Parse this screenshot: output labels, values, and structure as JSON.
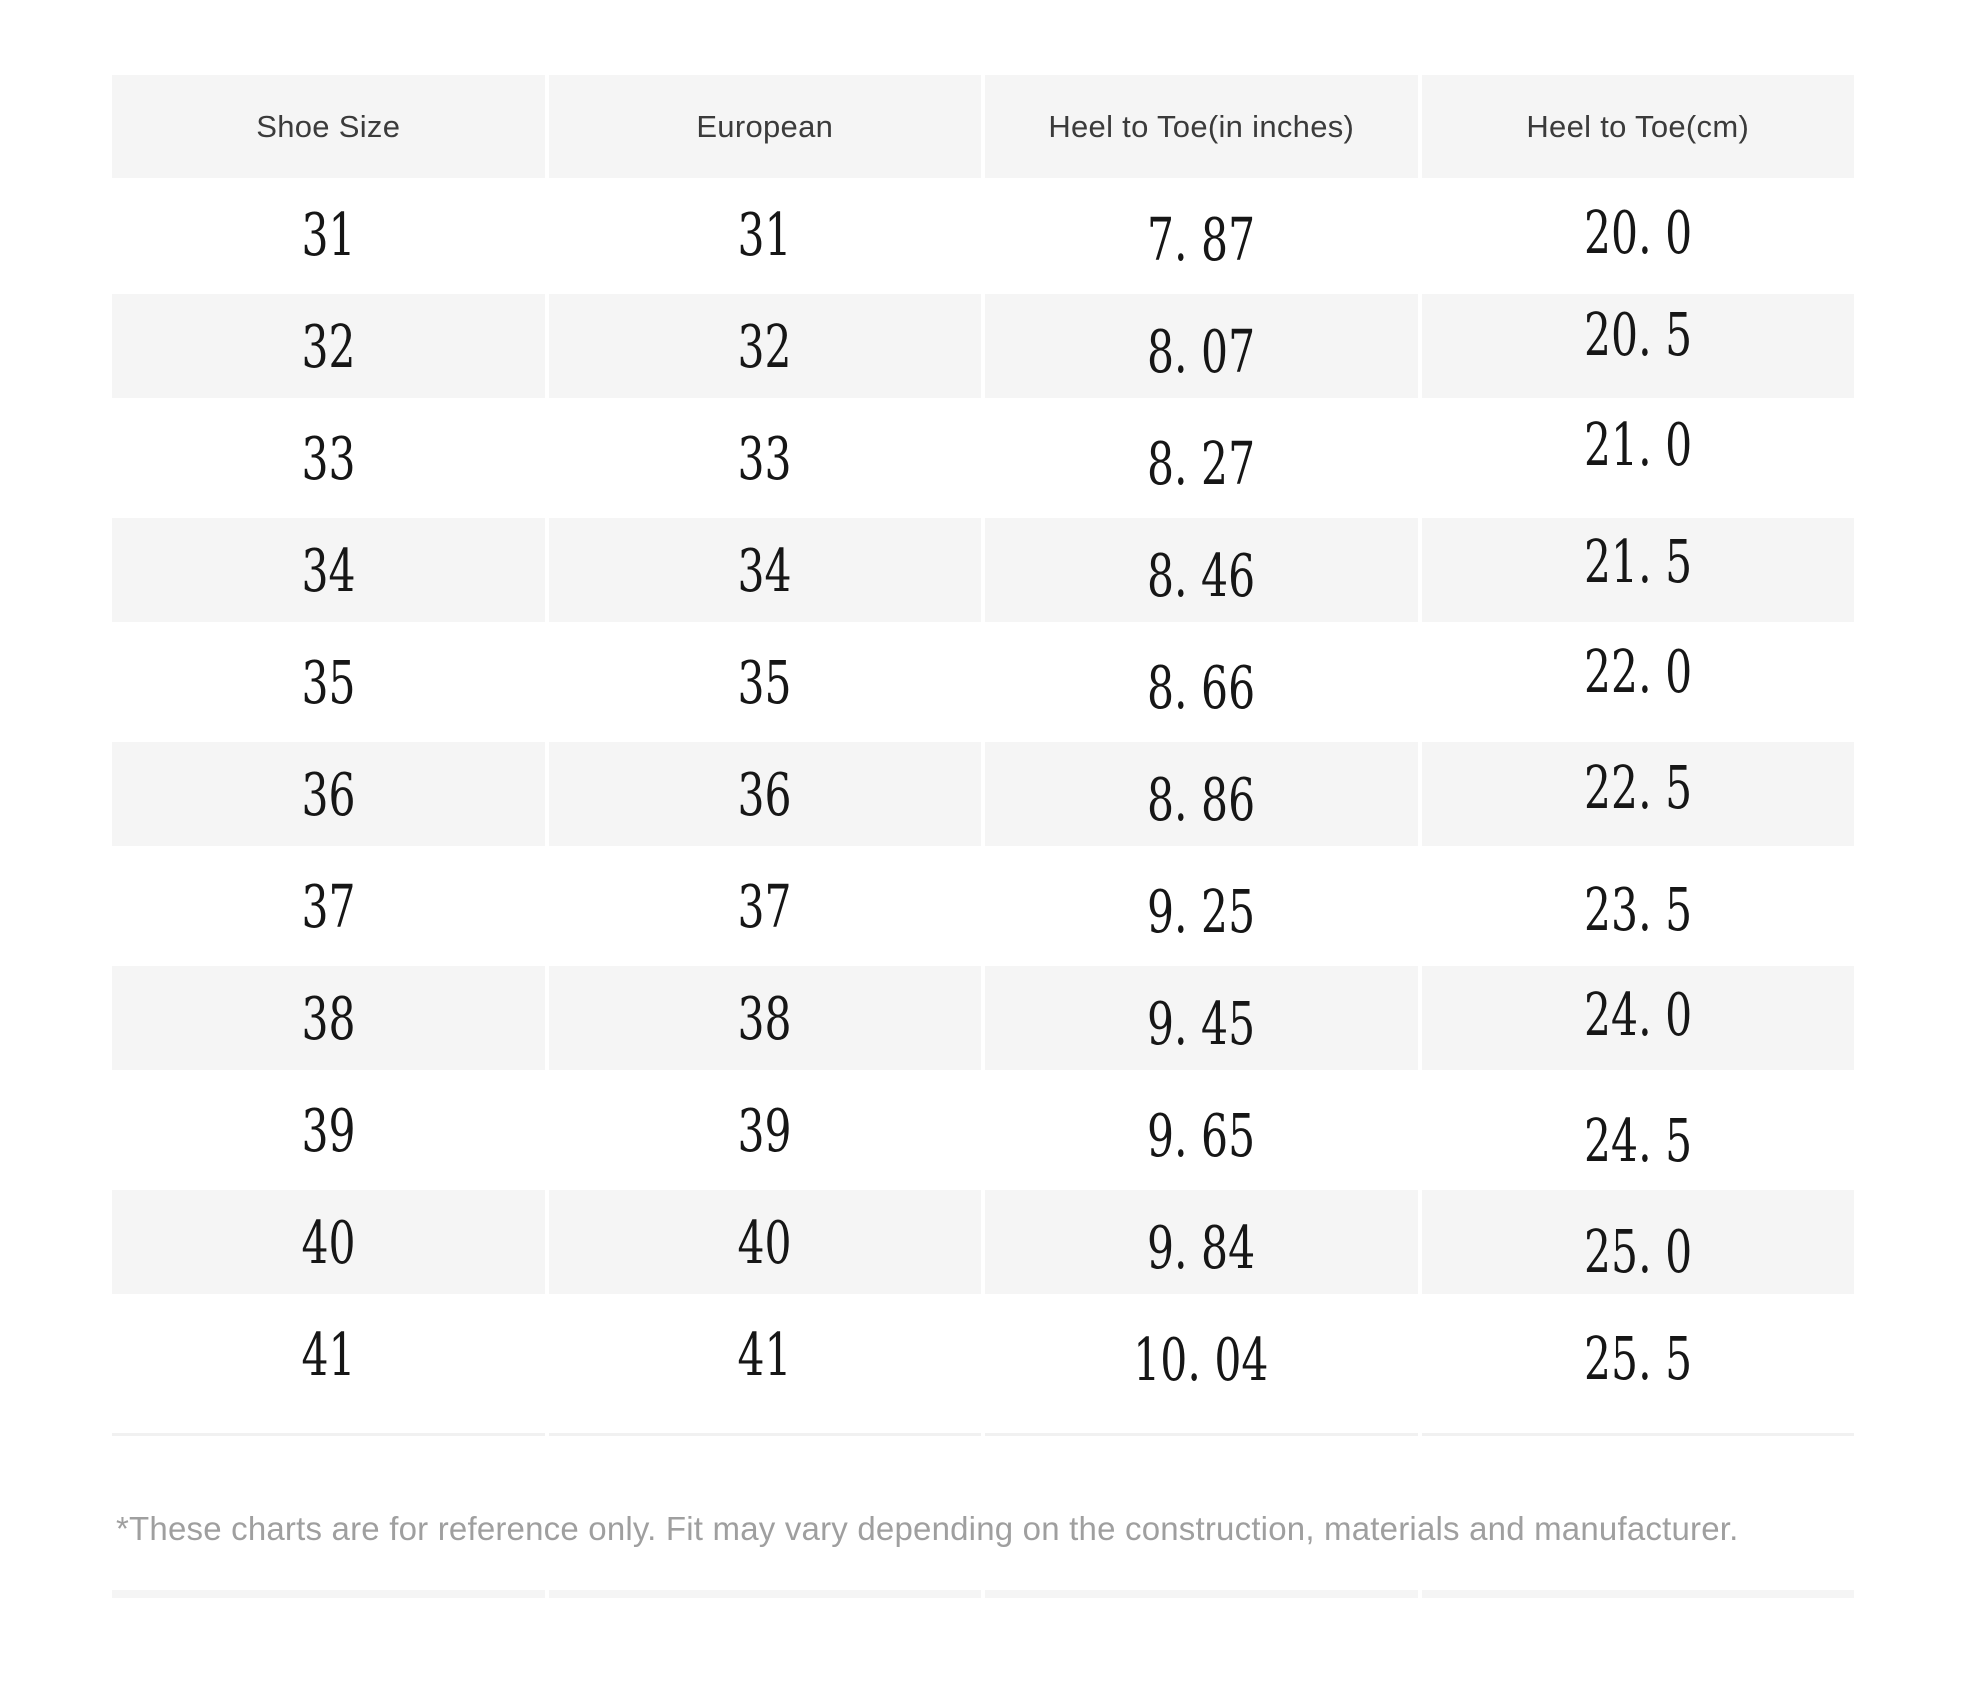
{
  "table": {
    "columns": [
      "Shoe Size",
      "European",
      "Heel to Toe(in inches)",
      "Heel to Toe(cm)"
    ],
    "rows": [
      [
        "31",
        "31",
        "7. 87",
        "20. 0"
      ],
      [
        "32",
        "32",
        "8. 07",
        "20. 5"
      ],
      [
        "33",
        "33",
        "8. 27",
        "21. 0"
      ],
      [
        "34",
        "34",
        "8. 46",
        "21. 5"
      ],
      [
        "35",
        "35",
        "8. 66",
        "22. 0"
      ],
      [
        "36",
        "36",
        "8. 86",
        "22. 5"
      ],
      [
        "37",
        "37",
        "9. 25",
        "23. 5"
      ],
      [
        "38",
        "38",
        "9. 45",
        "24. 0"
      ],
      [
        "39",
        "39",
        "9. 65",
        "24. 5"
      ],
      [
        "40",
        "40",
        "9. 84",
        "25. 0"
      ],
      [
        "41",
        "41",
        "10. 04",
        "25. 5"
      ]
    ]
  },
  "footnote": "*These charts are for reference only. Fit may vary depending on the construction, materials and manufacturer.",
  "colors": {
    "page_bg": "#ffffff",
    "stripe_bg": "#f5f5f5",
    "header_text": "#3b3b3b",
    "data_text": "#161616",
    "note_text": "#9f9f9f",
    "divider": "#f1f1f1"
  }
}
